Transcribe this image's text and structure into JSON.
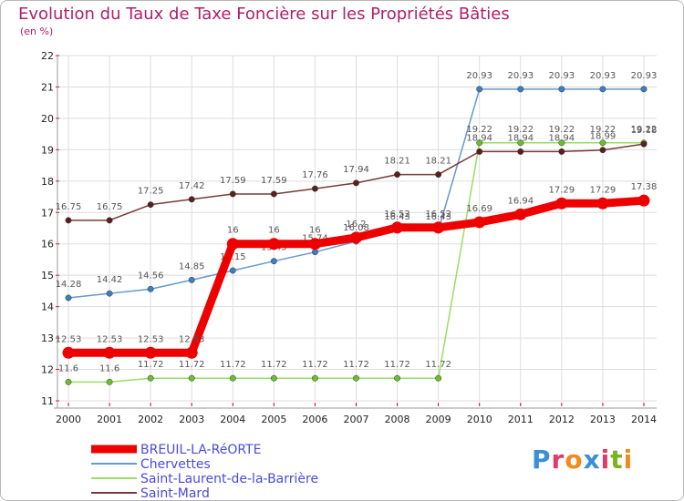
{
  "title": "Evolution du Taux de Taxe Foncière sur les Propriétés Bâties",
  "unit_label": "(en %)",
  "logo_text": "Proxiti",
  "chart_data": {
    "type": "line",
    "title": "Evolution du Taux de Taxe Foncière sur les Propriétés Bâties",
    "ylabel": "(en %)",
    "xlabel": "",
    "ylim": [
      11,
      22
    ],
    "yticks": [
      "11",
      "12",
      "13",
      "14",
      "15",
      "16",
      "17",
      "18",
      "19",
      "20",
      "21",
      "22"
    ],
    "categories": [
      "2000",
      "2001",
      "2002",
      "2003",
      "2004",
      "2005",
      "2006",
      "2007",
      "2008",
      "2009",
      "2010",
      "2011",
      "2012",
      "2013",
      "2014"
    ],
    "legend_position": "bottom-left",
    "grid": true,
    "series": [
      {
        "name": "Chervettes",
        "color": "#6699cc",
        "marker_color": "#3a7fc1",
        "values": [
          14.28,
          14.42,
          14.56,
          14.85,
          15.15,
          15.45,
          15.74,
          16.08,
          16.43,
          16.43,
          20.93,
          20.93,
          20.93,
          20.93,
          20.93
        ],
        "labels": [
          "14.28",
          "14.42",
          "14.56",
          "14.85",
          "15.15",
          "15.45",
          "15.74",
          "16.08",
          "16.43",
          "16.43",
          "20.93",
          "20.93",
          "20.93",
          "20.93",
          "20.93"
        ]
      },
      {
        "name": "Saint-Laurent-de-la-Barrière",
        "color": "#99dd66",
        "marker_color": "#6abf2e",
        "values": [
          11.6,
          11.6,
          11.72,
          11.72,
          11.72,
          11.72,
          11.72,
          11.72,
          11.72,
          11.72,
          19.22,
          19.22,
          19.22,
          19.22,
          19.22
        ],
        "labels": [
          "11.6",
          "11.6",
          "11.72",
          "11.72",
          "11.72",
          "11.72",
          "11.72",
          "11.72",
          "11.72",
          "11.72",
          "19.22",
          "19.22",
          "19.22",
          "19.22",
          "19.22"
        ]
      },
      {
        "name": "Saint-Mard",
        "color": "#7a3a3a",
        "marker_color": "#5a1f1f",
        "values": [
          16.75,
          16.75,
          17.25,
          17.42,
          17.59,
          17.59,
          17.76,
          17.94,
          18.21,
          18.21,
          18.94,
          18.94,
          18.94,
          18.99,
          19.18
        ],
        "labels": [
          "16.75",
          "16.75",
          "17.25",
          "17.42",
          "17.59",
          "17.59",
          "17.76",
          "17.94",
          "18.21",
          "18.21",
          "18.94",
          "18.94",
          "18.94",
          "18.99",
          "19.18"
        ]
      },
      {
        "name": "BREUIL-LA-RéORTE",
        "color": "#ee0000",
        "marker_color": "#ee0000",
        "values": [
          12.53,
          12.53,
          12.53,
          12.53,
          16,
          16,
          16,
          16.2,
          16.52,
          16.52,
          16.69,
          16.94,
          17.29,
          17.29,
          17.38
        ],
        "labels": [
          "12.53",
          "12.53",
          "12.53",
          "12.53",
          "16",
          "16",
          "16",
          "16.2",
          "16.52",
          "16.52",
          "16.69",
          "16.94",
          "17.29",
          "17.29",
          "17.38"
        ]
      }
    ]
  },
  "legend": [
    {
      "name": "BREUIL-LA-RéORTE",
      "color": "#ee0000"
    },
    {
      "name": "Chervettes",
      "color": "#6699cc"
    },
    {
      "name": "Saint-Laurent-de-la-Barrière",
      "color": "#99dd66"
    },
    {
      "name": "Saint-Mard",
      "color": "#7a3a3a"
    }
  ]
}
